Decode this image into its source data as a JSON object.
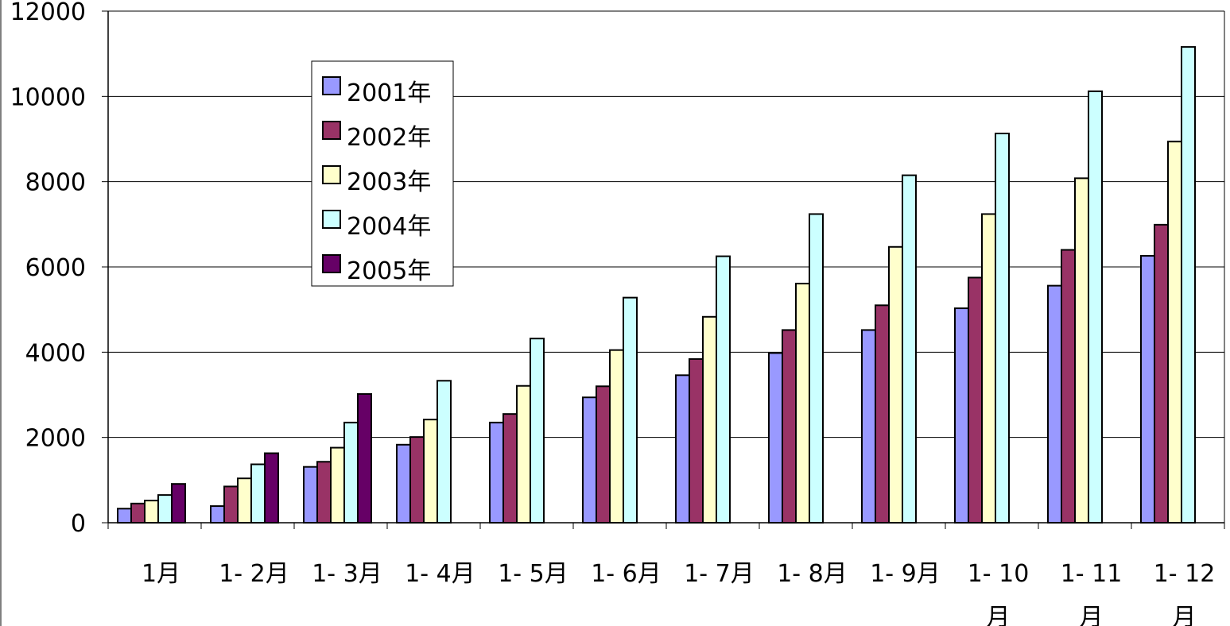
{
  "chart_data": {
    "type": "bar",
    "categories": [
      "1月",
      "1- 2月",
      "1- 3月",
      "1- 4月",
      "1- 5月",
      "1- 6月",
      "1- 7月",
      "1- 8月",
      "1- 9月",
      "1- 10月",
      "1- 11月",
      "1- 12月"
    ],
    "category_labels": [
      [
        "1月"
      ],
      [
        "1- 2月"
      ],
      [
        "1- 3月"
      ],
      [
        "1- 4月"
      ],
      [
        "1- 5月"
      ],
      [
        "1- 6月"
      ],
      [
        "1- 7月"
      ],
      [
        "1- 8月"
      ],
      [
        "1- 9月"
      ],
      [
        "1- 10",
        "月"
      ],
      [
        "1- 11",
        "月"
      ],
      [
        "1- 12",
        "月"
      ]
    ],
    "series": [
      {
        "name": "2001年",
        "color": "#9999FF",
        "values": [
          330,
          390,
          1310,
          1830,
          2350,
          2940,
          3460,
          3980,
          4520,
          5030,
          5560,
          6260
        ]
      },
      {
        "name": "2002年",
        "color": "#993366",
        "values": [
          450,
          850,
          1430,
          2010,
          2550,
          3200,
          3840,
          4520,
          5100,
          5750,
          6400,
          6990
        ]
      },
      {
        "name": "2003年",
        "color": "#FFFFCC",
        "values": [
          520,
          1040,
          1760,
          2420,
          3210,
          4050,
          4830,
          5610,
          6470,
          7240,
          8080,
          8940
        ]
      },
      {
        "name": "2004年",
        "color": "#CCFFFF",
        "values": [
          650,
          1370,
          2350,
          3330,
          4320,
          5280,
          6250,
          7240,
          8150,
          9130,
          10120,
          11160
        ]
      },
      {
        "name": "2005年",
        "color": "#660066",
        "values": [
          910,
          1630,
          3020,
          null,
          null,
          null,
          null,
          null,
          null,
          null,
          null,
          null
        ]
      }
    ],
    "y_ticks": [
      "0",
      "2000",
      "4000",
      "6000",
      "8000",
      "10000",
      "12000"
    ],
    "ylim": [
      0,
      12000
    ],
    "grid": true,
    "legend_position": "top-left"
  }
}
